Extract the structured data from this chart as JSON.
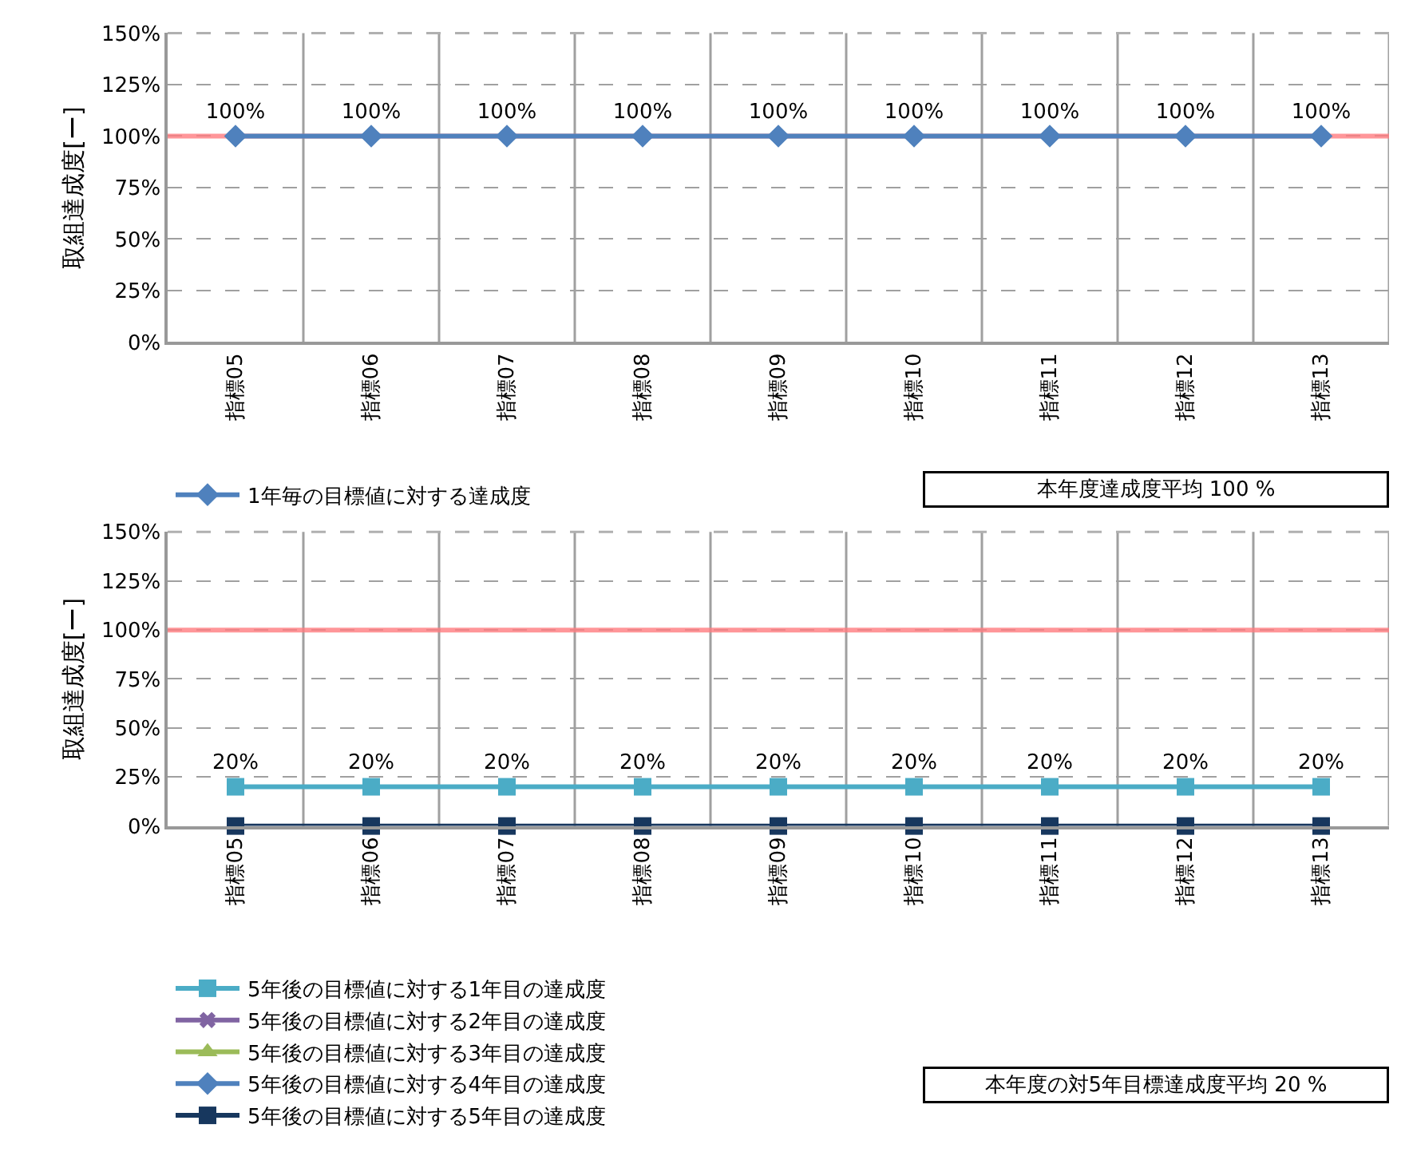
{
  "chart_data": [
    {
      "type": "line",
      "ylabel": "取組達成度[ー]",
      "categories": [
        "指標05",
        "指標06",
        "指標07",
        "指標08",
        "指標09",
        "指標10",
        "指標11",
        "指標12",
        "指標13"
      ],
      "series": [
        {
          "name": "1年毎の目標値に対する達成度",
          "color": "#4f81bd",
          "marker": "diamond",
          "values": [
            100,
            100,
            100,
            100,
            100,
            100,
            100,
            100,
            100
          ],
          "value_labels": [
            "100%",
            "100%",
            "100%",
            "100%",
            "100%",
            "100%",
            "100%",
            "100%",
            "100%"
          ]
        }
      ],
      "ylim": [
        0,
        150
      ],
      "yticks": [
        {
          "value": 0,
          "label": "0%"
        },
        {
          "value": 25,
          "label": "25%"
        },
        {
          "value": 50,
          "label": "50%"
        },
        {
          "value": 75,
          "label": "75%"
        },
        {
          "value": 100,
          "label": "100%"
        },
        {
          "value": 125,
          "label": "125%"
        },
        {
          "value": 150,
          "label": "150%"
        }
      ],
      "ref_lines": [
        {
          "axis": "y",
          "value": 100,
          "color": "#ff7c80"
        }
      ],
      "grid": true,
      "legend": "bottom",
      "annotations": [
        "本年度達成度平均 100 %"
      ]
    },
    {
      "type": "line",
      "ylabel": "取組達成度[ー]",
      "categories": [
        "指標05",
        "指標06",
        "指標07",
        "指標08",
        "指標09",
        "指標10",
        "指標11",
        "指標12",
        "指標13"
      ],
      "series": [
        {
          "name": "5年後の目標値に対する1年目の達成度",
          "color": "#4bacc6",
          "marker": "square",
          "values": [
            20,
            20,
            20,
            20,
            20,
            20,
            20,
            20,
            20
          ],
          "value_labels": [
            "20%",
            "20%",
            "20%",
            "20%",
            "20%",
            "20%",
            "20%",
            "20%",
            "20%"
          ]
        },
        {
          "name": "5年後の目標値に対する2年目の達成度",
          "color": "#8064a2",
          "marker": "cross",
          "values": [
            null,
            null,
            null,
            null,
            null,
            null,
            null,
            null,
            null
          ]
        },
        {
          "name": "5年後の目標値に対する3年目の達成度",
          "color": "#9bbb59",
          "marker": "triangle",
          "values": [
            null,
            null,
            null,
            null,
            null,
            null,
            null,
            null,
            null
          ]
        },
        {
          "name": "5年後の目標値に対する4年目の達成度",
          "color": "#4f81bd",
          "marker": "diamond",
          "values": [
            null,
            null,
            null,
            null,
            null,
            null,
            null,
            null,
            null
          ]
        },
        {
          "name": "5年後の目標値に対する5年目の達成度",
          "color": "#17375e",
          "marker": "square",
          "values": [
            0,
            0,
            0,
            0,
            0,
            0,
            0,
            0,
            0
          ]
        }
      ],
      "ylim": [
        0,
        150
      ],
      "yticks": [
        {
          "value": 0,
          "label": "0%"
        },
        {
          "value": 25,
          "label": "25%"
        },
        {
          "value": 50,
          "label": "50%"
        },
        {
          "value": 75,
          "label": "75%"
        },
        {
          "value": 100,
          "label": "100%"
        },
        {
          "value": 125,
          "label": "125%"
        },
        {
          "value": 150,
          "label": "150%"
        }
      ],
      "ref_lines": [
        {
          "axis": "y",
          "value": 100,
          "color": "#ff7c80"
        }
      ],
      "grid": true,
      "legend": "bottom",
      "annotations": [
        "本年度の対5年目標達成度平均 20 %"
      ]
    }
  ]
}
